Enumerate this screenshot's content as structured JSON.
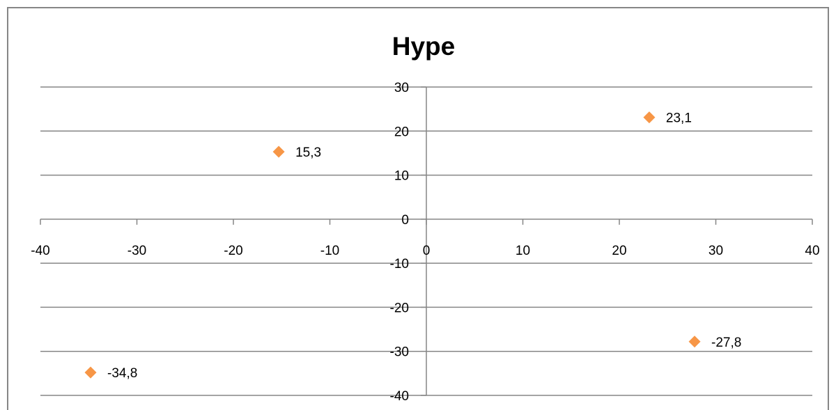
{
  "chart_data": {
    "type": "scatter",
    "title": "Hype",
    "xlabel": "",
    "ylabel": "",
    "xlim": [
      -40,
      40
    ],
    "ylim": [
      -40,
      30
    ],
    "x_ticks": [
      -40,
      -30,
      -20,
      -10,
      0,
      10,
      20,
      30,
      40
    ],
    "y_ticks": [
      -40,
      -30,
      -20,
      -10,
      0,
      10,
      20,
      30
    ],
    "grid": {
      "horizontal": true,
      "vertical": false
    },
    "legend": "none",
    "marker": "diamond",
    "series_color": "#F79646",
    "points": [
      {
        "x": 23.1,
        "y": 23.1,
        "label": "23,1"
      },
      {
        "x": -15.3,
        "y": 15.3,
        "label": "15,3"
      },
      {
        "x": 27.8,
        "y": -27.8,
        "label": "-27,8"
      },
      {
        "x": -34.8,
        "y": -34.8,
        "label": "-34,8"
      }
    ]
  }
}
